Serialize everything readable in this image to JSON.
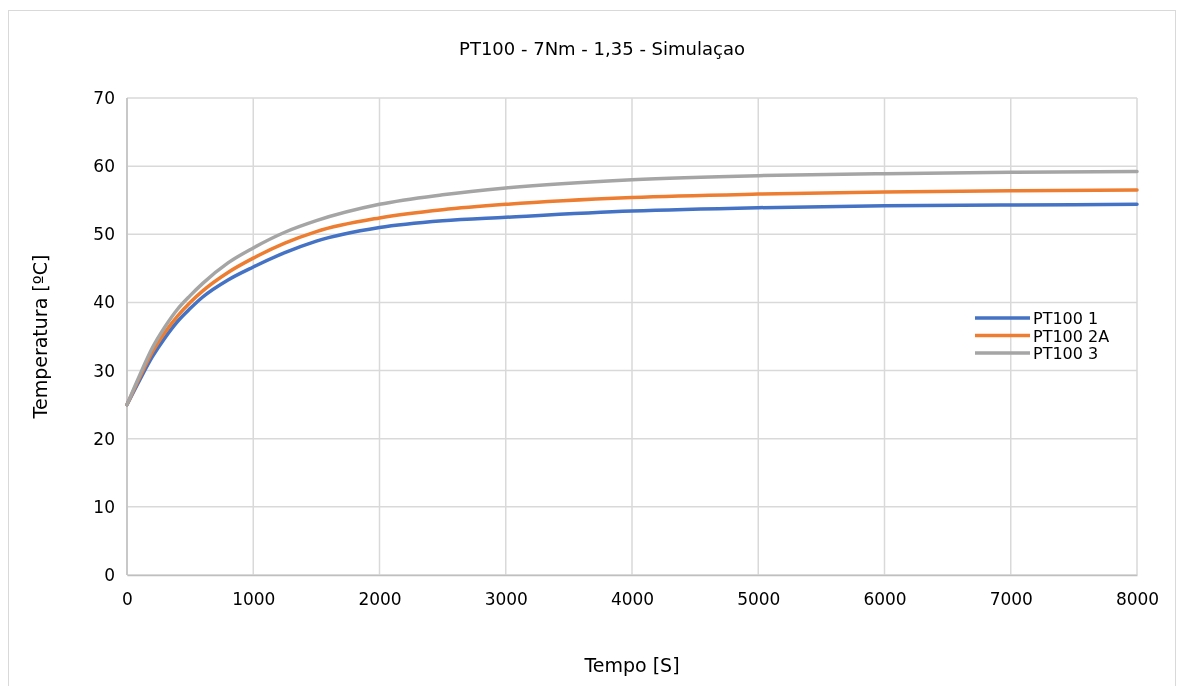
{
  "chart_data": {
    "type": "line",
    "title": "PT100 - 7Nm - 1,35 - Simulaçao",
    "xlabel": "Tempo [S]",
    "ylabel": "Temperatura [ºC]",
    "x": [
      0,
      100,
      200,
      300,
      400,
      500,
      600,
      800,
      1000,
      1250,
      1500,
      2000,
      2500,
      3000,
      4000,
      5000,
      6000,
      7000,
      8000
    ],
    "series": [
      {
        "name": "PT100 1",
        "color": "#4472c4",
        "values": [
          25,
          28.6,
          32,
          34.8,
          37.2,
          39.1,
          40.8,
          43.3,
          45.2,
          47.3,
          49,
          51,
          52,
          52.5,
          53.4,
          53.9,
          54.2,
          54.3,
          54.4
        ]
      },
      {
        "name": "PT100 2A",
        "color": "#ed7d31",
        "values": [
          25,
          29,
          32.7,
          35.6,
          38,
          40,
          41.7,
          44.4,
          46.5,
          48.7,
          50.4,
          52.4,
          53.6,
          54.4,
          55.4,
          55.9,
          56.2,
          56.4,
          56.5
        ]
      },
      {
        "name": "PT100 3",
        "color": "#a5a5a5",
        "values": [
          25,
          29.3,
          33.3,
          36.4,
          39,
          41,
          42.8,
          45.8,
          48,
          50.3,
          52,
          54.4,
          55.8,
          56.8,
          58,
          58.6,
          58.9,
          59.1,
          59.2
        ]
      }
    ],
    "xlim": [
      0,
      8000
    ],
    "xticks": [
      0,
      1000,
      2000,
      3000,
      4000,
      5000,
      6000,
      7000,
      8000
    ],
    "ylim": [
      0,
      70
    ],
    "yticks": [
      0,
      10,
      20,
      30,
      40,
      50,
      60,
      70
    ],
    "grid": true,
    "legend": "right",
    "marker": "none",
    "line_style": "solid"
  }
}
